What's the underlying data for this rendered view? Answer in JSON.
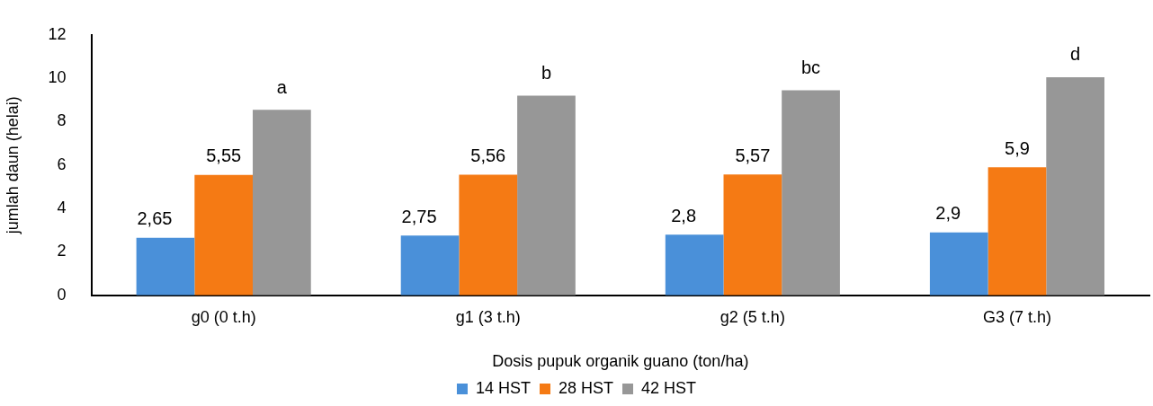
{
  "chart_data": {
    "type": "bar",
    "xlabel": "Dosis pupuk organik guano (ton/ha)",
    "ylabel": "jumlah daun (helai)",
    "categories": [
      "g0 (0 t.h)",
      "g1 (3 t.h)",
      "g2 (5 t.h)",
      "G3 (7 t.h)"
    ],
    "series": [
      {
        "name": "14 HST",
        "color": "#4a90d9",
        "values": [
          2.65,
          2.75,
          2.8,
          2.9
        ],
        "value_labels": [
          "2,65",
          "2,75",
          "2,8",
          "2,9"
        ]
      },
      {
        "name": "28 HST",
        "color": "#f57a14",
        "values": [
          5.55,
          5.56,
          5.57,
          5.9
        ],
        "value_labels": [
          "5,55",
          "5,56",
          "5,57",
          "5,9"
        ]
      },
      {
        "name": "42 HST",
        "color": "#979797",
        "values": [
          8.55,
          9.2,
          9.45,
          10.05
        ],
        "value_labels": [
          "a",
          "b",
          "bc",
          "d"
        ]
      }
    ],
    "ylim": [
      0,
      12
    ],
    "yticks": [
      0,
      2,
      4,
      6,
      8,
      10,
      12
    ],
    "grid": false,
    "legend": "bottom"
  }
}
